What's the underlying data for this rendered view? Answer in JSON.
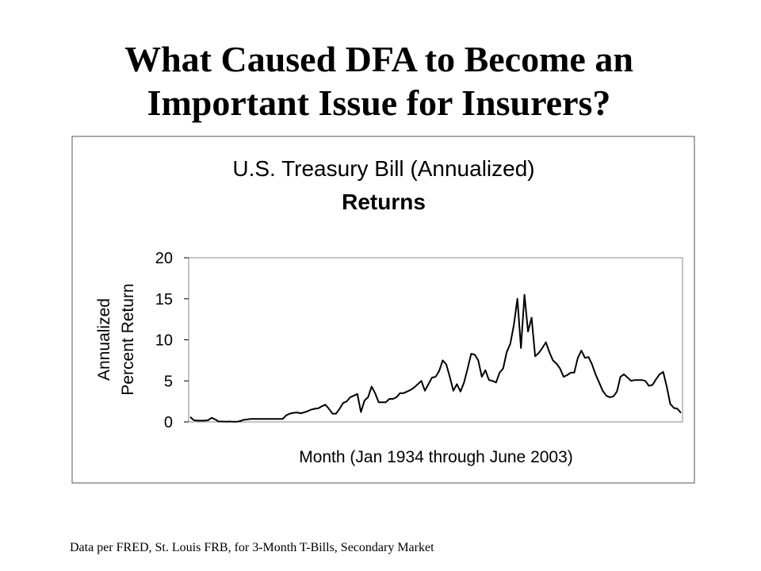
{
  "slide_title": [
    "What Caused DFA to Become an",
    "Important Issue for Insurers?"
  ],
  "chart_data": {
    "type": "line",
    "title": [
      "U.S. Treasury Bill (Annualized)",
      "Returns"
    ],
    "y_label": [
      "Annualized",
      "Percent Return"
    ],
    "x_label": "Month (Jan 1934 through June 2003)",
    "ylim": [
      0,
      20
    ],
    "yticks": [
      0,
      5,
      10,
      15,
      20
    ],
    "color": "#000000",
    "values": [
      0.6,
      0.2,
      0.15,
      0.15,
      0.15,
      0.2,
      0.5,
      0.3,
      0.05,
      0.05,
      0.02,
      0.05,
      0.02,
      0.02,
      0.1,
      0.25,
      0.3,
      0.37,
      0.37,
      0.37,
      0.37,
      0.37,
      0.37,
      0.37,
      0.37,
      0.37,
      0.37,
      0.8,
      1.0,
      1.1,
      1.15,
      1.05,
      1.15,
      1.3,
      1.5,
      1.6,
      1.65,
      1.9,
      2.1,
      1.6,
      1.0,
      1.0,
      1.6,
      2.3,
      2.5,
      3.0,
      3.2,
      3.4,
      1.2,
      2.6,
      3.0,
      4.3,
      3.5,
      2.4,
      2.4,
      2.4,
      2.8,
      2.8,
      3.0,
      3.5,
      3.5,
      3.7,
      3.9,
      4.2,
      4.6,
      5.0,
      3.8,
      4.6,
      5.4,
      5.5,
      6.2,
      7.5,
      7.0,
      5.5,
      3.8,
      4.6,
      3.7,
      4.8,
      6.5,
      8.3,
      8.2,
      7.5,
      5.5,
      6.3,
      5.1,
      5.0,
      4.8,
      6.0,
      6.5,
      8.5,
      9.5,
      11.8,
      15.0,
      9.0,
      15.5,
      11.0,
      12.7,
      8.0,
      8.4,
      9.0,
      9.7,
      8.5,
      7.5,
      7.1,
      6.5,
      5.5,
      5.7,
      6.0,
      6.0,
      7.8,
      8.7,
      7.8,
      7.9,
      7.0,
      5.8,
      4.8,
      3.8,
      3.2,
      3.0,
      3.1,
      3.7,
      5.5,
      5.8,
      5.4,
      5.0,
      5.1,
      5.1,
      5.1,
      5.0,
      4.4,
      4.5,
      5.2,
      5.8,
      6.1,
      4.3,
      2.2,
      1.7,
      1.6,
      1.1
    ]
  },
  "footnote": "Data per FRED, St. Louis FRB, for 3-Month T-Bills, Secondary Market"
}
